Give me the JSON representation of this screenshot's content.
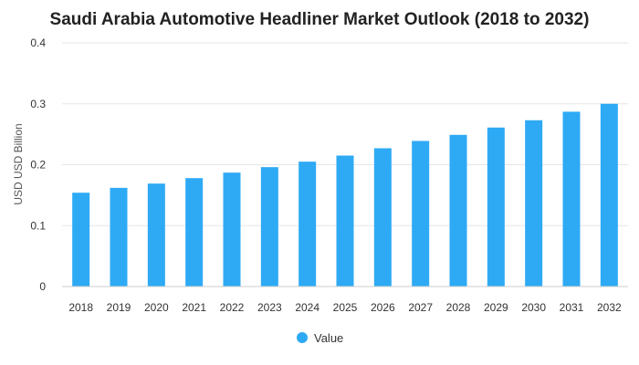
{
  "chart_data": {
    "type": "bar",
    "title": "Saudi Arabia Automotive Headliner Market Outlook (2018 to 2032)",
    "xlabel": "",
    "ylabel": "USD USD Billion",
    "categories": [
      "2018",
      "2019",
      "2020",
      "2021",
      "2022",
      "2023",
      "2024",
      "2025",
      "2026",
      "2027",
      "2028",
      "2029",
      "2030",
      "2031",
      "2032"
    ],
    "series": [
      {
        "name": "Value",
        "color": "#2eaaf5",
        "values": [
          0.154,
          0.162,
          0.169,
          0.178,
          0.187,
          0.196,
          0.205,
          0.215,
          0.227,
          0.239,
          0.249,
          0.261,
          0.273,
          0.287,
          0.3
        ]
      }
    ],
    "ylim": [
      0,
      0.4
    ],
    "yticks": [
      "0",
      "0.1",
      "0.2",
      "0.3",
      "0.4"
    ],
    "grid": true,
    "legend_position": "bottom"
  }
}
